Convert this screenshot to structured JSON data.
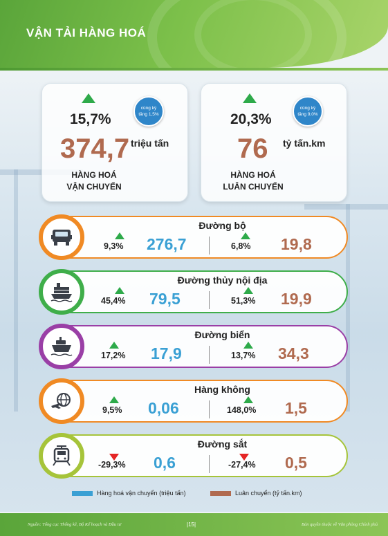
{
  "header": {
    "title": "VẬN TẢI HÀNG HOÁ"
  },
  "summary": [
    {
      "pct": "15,7%",
      "value": "374,7",
      "unit": "triệu tấn",
      "caption_l1": "HÀNG HOÁ",
      "caption_l2": "VẬN CHUYỂN",
      "badge_l1": "cùng kỳ",
      "badge_l2": "tăng 1,5%"
    },
    {
      "pct": "20,3%",
      "value": "76",
      "unit": "tỷ tấn.km",
      "caption_l1": "HÀNG HOÁ",
      "caption_l2": "LUÂN CHUYỂN",
      "badge_l1": "cùng kỳ",
      "badge_l2": "tăng 9,0%"
    }
  ],
  "modes": [
    {
      "name": "Đường bộ",
      "icon": "truck-icon",
      "color": "#f08a24",
      "dir1": "up",
      "pct1": "9,3%",
      "val1": "276,7",
      "dir2": "up",
      "pct2": "6,8%",
      "val2": "19,8"
    },
    {
      "name": "Đường thủy nội địa",
      "icon": "cargo-ship-icon",
      "color": "#3fae4a",
      "dir1": "up",
      "pct1": "45,4%",
      "val1": "79,5",
      "dir2": "up",
      "pct2": "51,3%",
      "val2": "19,9"
    },
    {
      "name": "Đường biển",
      "icon": "sea-ship-icon",
      "color": "#9a3fa6",
      "dir1": "up",
      "pct1": "17,2%",
      "val1": "17,9",
      "dir2": "up",
      "pct2": "13,7%",
      "val2": "34,3"
    },
    {
      "name": "Hàng không",
      "icon": "airplane-globe-icon",
      "color": "#f08a24",
      "dir1": "up",
      "pct1": "9,5%",
      "val1": "0,06",
      "dir2": "up",
      "pct2": "148,0%",
      "val2": "1,5"
    },
    {
      "name": "Đường sắt",
      "icon": "train-icon",
      "color": "#a6c43a",
      "dir1": "down",
      "pct1": "-29,3%",
      "val1": "0,6",
      "dir2": "down",
      "pct2": "-27,4%",
      "val2": "0,5"
    }
  ],
  "legend": {
    "item1": "Hàng hoá vận chuyển (triệu tấn)",
    "color1": "#3aa0d4",
    "item2": "Luân chuyển (tỷ tấn.km)",
    "color2": "#b06a4f"
  },
  "footer": {
    "source": "Nguồn: Tổng cục Thống kê, Bộ Kế hoạch và Đầu tư",
    "page": "|15|",
    "copyright": "Bản quyền thuộc về Văn phòng Chính phủ"
  }
}
